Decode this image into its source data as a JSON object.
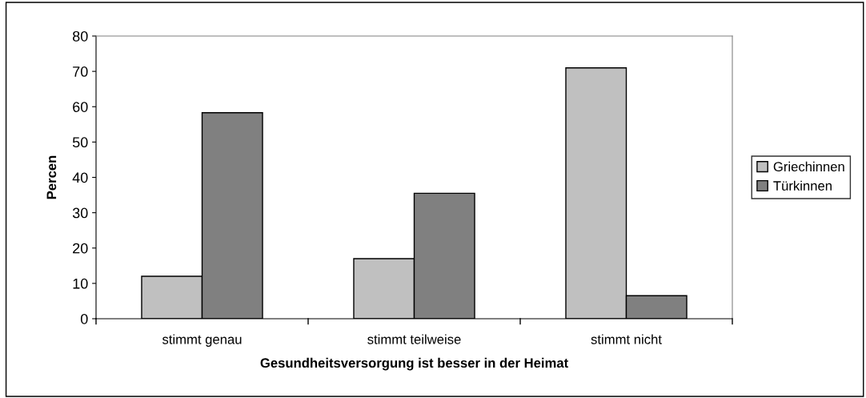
{
  "chart_data": {
    "type": "bar",
    "xlabel": "Gesundheitsversorgung ist besser in der Heimat",
    "ylabel": "Percen",
    "categories": [
      "stimmt genau",
      "stimmt teilweise",
      "stimmt nicht"
    ],
    "series": [
      {
        "name": "Griechinnen",
        "color": "#c0c0c0",
        "values": [
          12,
          17,
          71
        ]
      },
      {
        "name": "Türkinnen",
        "color": "#808080",
        "values": [
          58.3,
          35.5,
          6.5
        ]
      }
    ],
    "ylim": [
      0,
      80
    ],
    "yticks": [
      0,
      10,
      20,
      30,
      40,
      50,
      60,
      70,
      80
    ],
    "grid": false,
    "legend": "right"
  }
}
